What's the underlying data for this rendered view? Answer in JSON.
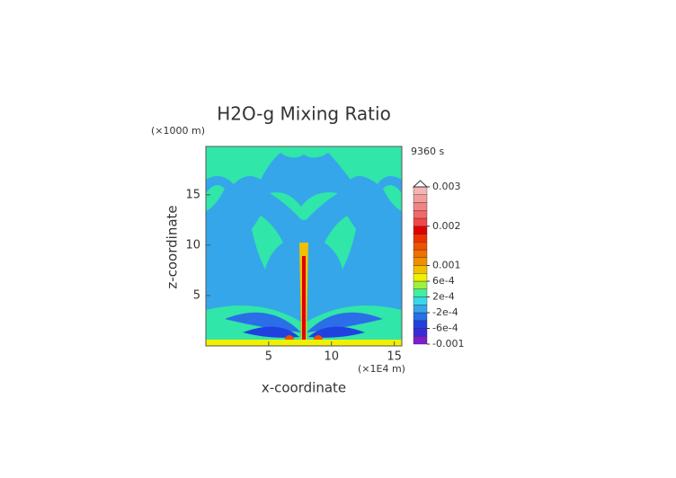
{
  "chart_data": {
    "type": "contour",
    "title": "H2O-g Mixing Ratio",
    "time_label": "9360 s",
    "x_label": "x-coordinate",
    "y_label": "z-coordinate",
    "x_unit": "(×1E4 m)",
    "y_unit": "(×1000 m)",
    "xlim": [
      0,
      15.6
    ],
    "ylim": [
      0,
      19.8
    ],
    "xticks": [
      5,
      10,
      15
    ],
    "yticks": [
      5,
      10,
      15
    ],
    "colorbar": {
      "clim": [
        -0.001,
        0.003
      ],
      "levels": [
        -0.001,
        -0.0008,
        -0.0006,
        -0.0004,
        -0.0002,
        0,
        0.0002,
        0.0004,
        0.0006,
        0.0008,
        0.001,
        0.0012,
        0.0014,
        0.0016,
        0.0018,
        0.002,
        0.0022,
        0.0024,
        0.0026,
        0.0028,
        0.003
      ],
      "colors": [
        "#7a1fd0",
        "#3b2bd6",
        "#2040e0",
        "#2a6ee8",
        "#35a6ea",
        "#38d8e8",
        "#40f0a0",
        "#a0f040",
        "#f0f000",
        "#f0c000",
        "#f09000",
        "#f07000",
        "#f05000",
        "#f03000",
        "#e00000",
        "#f04848",
        "#f06868",
        "#f08484",
        "#f49c9c",
        "#f6b4b4"
      ],
      "ticks": [
        {
          "value": -0.001,
          "label": "-0.001"
        },
        {
          "value": -0.0006,
          "label": "-6e-4"
        },
        {
          "value": -0.0002,
          "label": "-2e-4"
        },
        {
          "value": 0.0002,
          "label": "2e-4"
        },
        {
          "value": 0.0006,
          "label": "6e-4"
        },
        0.001,
        0.002,
        0.003
      ]
    }
  }
}
